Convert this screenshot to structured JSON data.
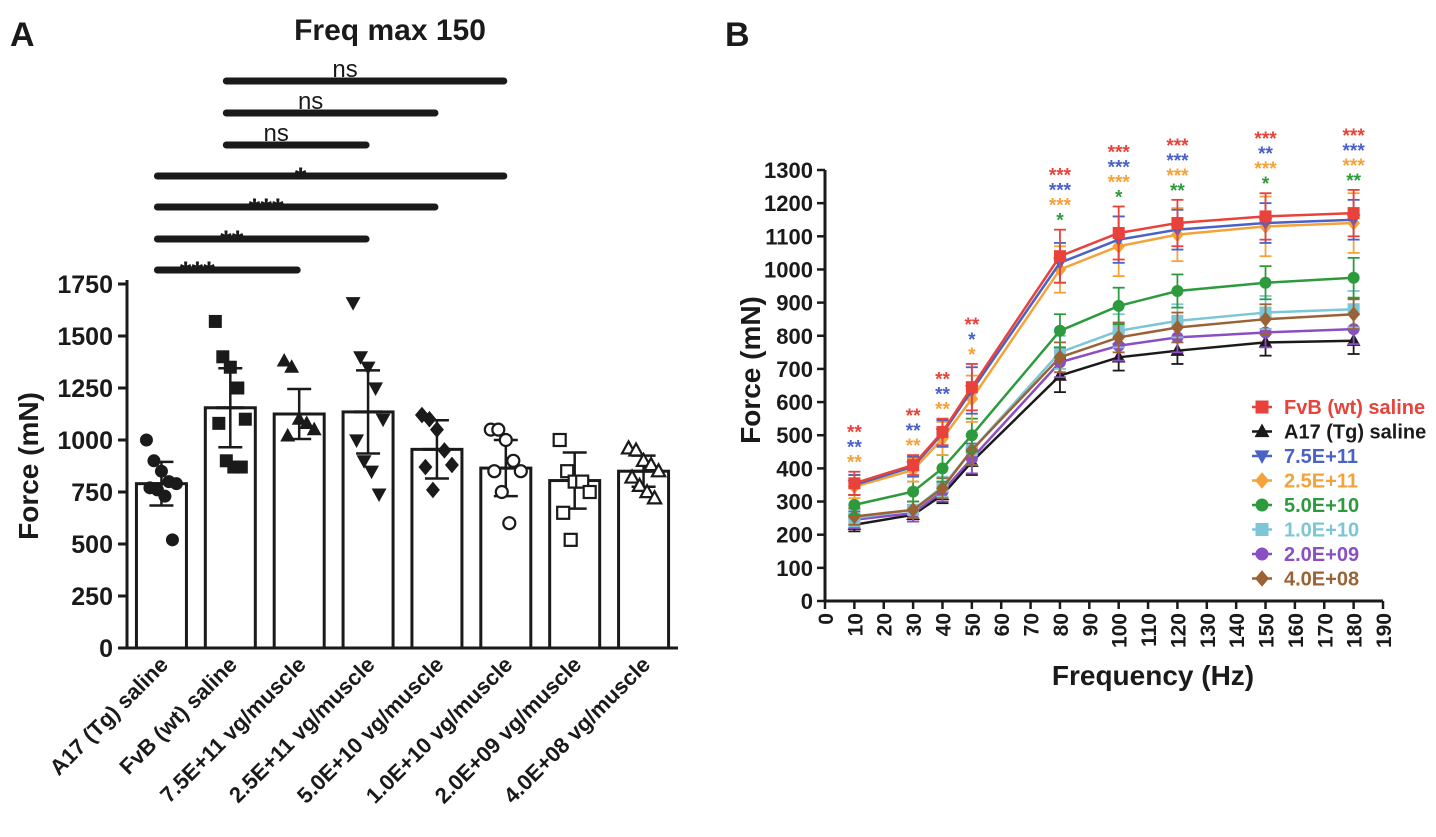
{
  "panels": {
    "a": {
      "label": "A",
      "title": "Freq max 150",
      "ylabel": "Force (mN)",
      "yticks": [
        "0",
        "250",
        "500",
        "750",
        "1000",
        "1250",
        "1500",
        "1750"
      ]
    },
    "b": {
      "label": "B",
      "ylabel": "Force (mN)",
      "xlabel": "Frequency (Hz)"
    }
  },
  "colors": {
    "black": "#1a1a1a",
    "red": "#e8423a",
    "blue": "#4a62c8",
    "orange": "#f5a23a",
    "green": "#2e9a3e",
    "cyan": "#7cc6d6",
    "purple": "#8a4fc2",
    "brown": "#9a6235"
  },
  "chart_data": [
    {
      "type": "bar",
      "title": "Freq max 150",
      "xlabel": "",
      "ylabel": "Force (mN)",
      "ylim": [
        0,
        1750
      ],
      "categories": [
        "A17 (Tg) saline",
        "FvB (wt) saline",
        "7.5E+11 vg/muscle",
        "2.5E+11 vg/muscle",
        "5.0E+10 vg/muscle",
        "1.0E+10 vg/muscle",
        "2.0E+09 vg/muscle",
        "4.0E+08 vg/muscle"
      ],
      "values": [
        790,
        1155,
        1125,
        1135,
        955,
        865,
        805,
        850
      ],
      "sd": [
        105,
        190,
        120,
        200,
        140,
        135,
        135,
        75
      ],
      "markers": [
        "circle",
        "square",
        "triangle-up",
        "triangle-down",
        "diamond",
        "circle-open",
        "square-open",
        "triangle-open"
      ],
      "points": [
        [
          1000,
          900,
          850,
          800,
          790,
          770,
          760,
          730,
          520
        ],
        [
          1570,
          1400,
          1350,
          1250,
          1100,
          1080,
          900,
          870,
          870
        ],
        [
          1380,
          1350,
          1100,
          1080,
          1050,
          1020
        ],
        [
          1660,
          1400,
          1350,
          1250,
          1100,
          1000,
          900,
          850,
          740
        ],
        [
          1120,
          1100,
          1050,
          950,
          880,
          870,
          760
        ],
        [
          1050,
          1050,
          1000,
          900,
          850,
          850,
          750,
          600
        ],
        [
          1000,
          850,
          800,
          800,
          750,
          650,
          520
        ],
        [
          960,
          950,
          900,
          880,
          850,
          820,
          780,
          750,
          720
        ]
      ],
      "comparisons": [
        {
          "from": 1,
          "to": 5,
          "label": "ns"
        },
        {
          "from": 1,
          "to": 4,
          "label": "ns"
        },
        {
          "from": 1,
          "to": 3,
          "label": "ns"
        },
        {
          "from": 0,
          "to": 5,
          "label": "*"
        },
        {
          "from": 0,
          "to": 4,
          "label": "***"
        },
        {
          "from": 0,
          "to": 3,
          "label": "**"
        },
        {
          "from": 0,
          "to": 2,
          "label": "***"
        }
      ]
    },
    {
      "type": "line",
      "xlabel": "Frequency (Hz)",
      "ylabel": "Force (mN)",
      "xlim": [
        0,
        190
      ],
      "ylim": [
        0,
        1300
      ],
      "xticks": [
        0,
        10,
        20,
        30,
        40,
        50,
        60,
        70,
        80,
        90,
        100,
        110,
        120,
        130,
        140,
        150,
        160,
        170,
        180,
        190
      ],
      "yticks": [
        0,
        100,
        200,
        300,
        400,
        500,
        600,
        700,
        800,
        900,
        1000,
        1100,
        1200,
        1300
      ],
      "x": [
        10,
        30,
        40,
        50,
        80,
        100,
        120,
        150,
        180
      ],
      "series": [
        {
          "name": "FvB (wt) saline",
          "color": "#e8423a",
          "marker": "square",
          "values": [
            355,
            410,
            510,
            645,
            1040,
            1110,
            1140,
            1160,
            1170
          ],
          "err": [
            35,
            30,
            40,
            70,
            80,
            80,
            70,
            70,
            70
          ]
        },
        {
          "name": "A17 (Tg) saline",
          "color": "#1a1a1a",
          "marker": "triangle-up",
          "values": [
            230,
            260,
            320,
            420,
            680,
            735,
            755,
            780,
            785
          ],
          "err": [
            20,
            20,
            25,
            40,
            50,
            40,
            40,
            40,
            40
          ]
        },
        {
          "name": "7.5E+11",
          "color": "#4a62c8",
          "marker": "triangle-down",
          "values": [
            350,
            405,
            505,
            635,
            1020,
            1090,
            1120,
            1140,
            1150
          ],
          "err": [
            30,
            30,
            40,
            70,
            60,
            70,
            60,
            60,
            60
          ]
        },
        {
          "name": "2.5E+11",
          "color": "#f5a23a",
          "marker": "diamond",
          "values": [
            345,
            395,
            490,
            610,
            1000,
            1070,
            1105,
            1130,
            1140
          ],
          "err": [
            35,
            35,
            50,
            70,
            70,
            90,
            80,
            90,
            90
          ]
        },
        {
          "name": "5.0E+10",
          "color": "#2e9a3e",
          "marker": "circle",
          "values": [
            290,
            330,
            400,
            500,
            815,
            890,
            935,
            960,
            975
          ],
          "err": [
            30,
            30,
            40,
            50,
            50,
            55,
            50,
            50,
            60
          ]
        },
        {
          "name": "1.0E+10",
          "color": "#7cc6d6",
          "marker": "square",
          "values": [
            250,
            275,
            345,
            455,
            750,
            815,
            845,
            870,
            880
          ],
          "err": [
            25,
            25,
            30,
            45,
            50,
            50,
            50,
            50,
            55
          ]
        },
        {
          "name": "2.0E+09",
          "color": "#8a4fc2",
          "marker": "circle",
          "values": [
            245,
            265,
            330,
            430,
            720,
            770,
            795,
            810,
            820
          ],
          "err": [
            25,
            25,
            30,
            45,
            45,
            45,
            45,
            45,
            45
          ]
        },
        {
          "name": "4.0E+08",
          "color": "#9a6235",
          "marker": "diamond",
          "values": [
            255,
            275,
            340,
            455,
            735,
            795,
            825,
            850,
            865
          ],
          "err": [
            25,
            25,
            30,
            45,
            45,
            45,
            45,
            45,
            45
          ]
        }
      ],
      "annotations": [
        {
          "x": 10,
          "labels": [
            [
              "**",
              "#e8423a"
            ],
            [
              "**",
              "#4a62c8"
            ],
            [
              "**",
              "#f5a23a"
            ]
          ]
        },
        {
          "x": 30,
          "labels": [
            [
              "**",
              "#e8423a"
            ],
            [
              "**",
              "#4a62c8"
            ],
            [
              "**",
              "#f5a23a"
            ]
          ]
        },
        {
          "x": 40,
          "labels": [
            [
              "**",
              "#e8423a"
            ],
            [
              "**",
              "#4a62c8"
            ],
            [
              "**",
              "#f5a23a"
            ]
          ]
        },
        {
          "x": 50,
          "labels": [
            [
              "**",
              "#e8423a"
            ],
            [
              "*",
              "#4a62c8"
            ],
            [
              "*",
              "#f5a23a"
            ]
          ]
        },
        {
          "x": 80,
          "labels": [
            [
              "***",
              "#e8423a"
            ],
            [
              "***",
              "#4a62c8"
            ],
            [
              "***",
              "#f5a23a"
            ],
            [
              "*",
              "#2e9a3e"
            ]
          ]
        },
        {
          "x": 100,
          "labels": [
            [
              "***",
              "#e8423a"
            ],
            [
              "***",
              "#4a62c8"
            ],
            [
              "***",
              "#f5a23a"
            ],
            [
              "*",
              "#2e9a3e"
            ]
          ]
        },
        {
          "x": 120,
          "labels": [
            [
              "***",
              "#e8423a"
            ],
            [
              "***",
              "#4a62c8"
            ],
            [
              "***",
              "#f5a23a"
            ],
            [
              "**",
              "#2e9a3e"
            ]
          ]
        },
        {
          "x": 150,
          "labels": [
            [
              "***",
              "#e8423a"
            ],
            [
              "**",
              "#4a62c8"
            ],
            [
              "***",
              "#f5a23a"
            ],
            [
              "*",
              "#2e9a3e"
            ]
          ]
        },
        {
          "x": 180,
          "labels": [
            [
              "***",
              "#e8423a"
            ],
            [
              "***",
              "#4a62c8"
            ],
            [
              "***",
              "#f5a23a"
            ],
            [
              "**",
              "#2e9a3e"
            ]
          ]
        }
      ]
    }
  ]
}
